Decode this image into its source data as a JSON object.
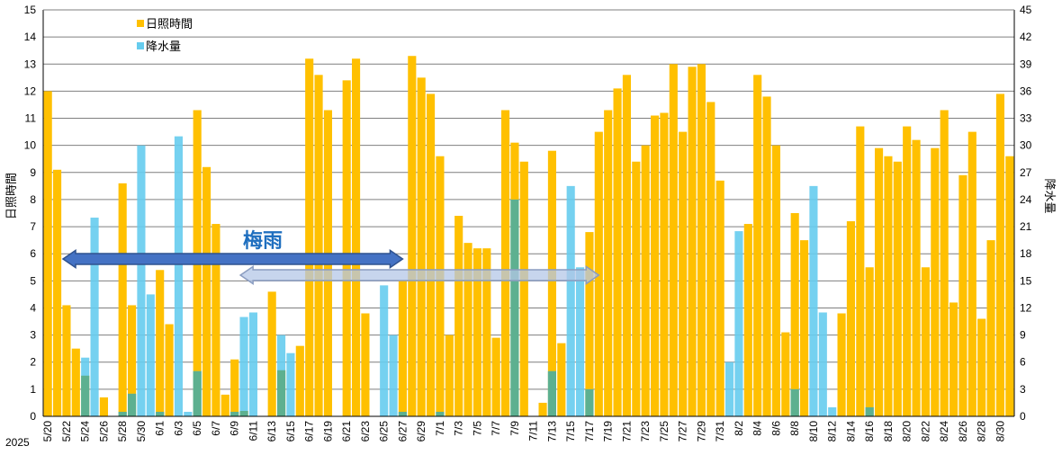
{
  "chart_data": {
    "type": "bar",
    "year_label": "2025",
    "categories": [
      "5/20",
      "5/21",
      "5/22",
      "5/23",
      "5/24",
      "5/25",
      "5/26",
      "5/27",
      "5/28",
      "5/29",
      "5/30",
      "5/31",
      "6/1",
      "6/2",
      "6/3",
      "6/4",
      "6/5",
      "6/6",
      "6/7",
      "6/8",
      "6/9",
      "6/10",
      "6/11",
      "6/12",
      "6/13",
      "6/14",
      "6/15",
      "6/16",
      "6/17",
      "6/18",
      "6/19",
      "6/20",
      "6/21",
      "6/22",
      "6/23",
      "6/24",
      "6/25",
      "6/26",
      "6/27",
      "6/28",
      "6/29",
      "6/30",
      "7/1",
      "7/2",
      "7/3",
      "7/4",
      "7/5",
      "7/6",
      "7/7",
      "7/8",
      "7/9",
      "7/10",
      "7/11",
      "7/12",
      "7/13",
      "7/14",
      "7/15",
      "7/16",
      "7/17",
      "7/18",
      "7/19",
      "7/20",
      "7/21",
      "7/22",
      "7/23",
      "7/24",
      "7/25",
      "7/26",
      "7/27",
      "7/28",
      "7/29",
      "7/30",
      "7/31",
      "8/1",
      "8/2",
      "8/3",
      "8/4",
      "8/5",
      "8/6",
      "8/7",
      "8/8",
      "8/9",
      "8/10",
      "8/11",
      "8/12",
      "8/13",
      "8/14",
      "8/15",
      "8/16",
      "8/17",
      "8/18",
      "8/19",
      "8/20",
      "8/21",
      "8/22",
      "8/23",
      "8/24",
      "8/25",
      "8/26",
      "8/27",
      "8/28",
      "8/29",
      "8/30",
      "8/31"
    ],
    "series": [
      {
        "name": "日照時間",
        "axis": "left",
        "color": "#ffc000",
        "values": [
          12.0,
          9.1,
          4.1,
          2.5,
          1.5,
          0.0,
          0.7,
          0.0,
          8.6,
          4.1,
          0.0,
          0.0,
          5.4,
          3.4,
          0.0,
          0.0,
          11.3,
          9.2,
          7.1,
          0.8,
          2.1,
          0.2,
          0.0,
          0.0,
          4.6,
          1.7,
          0.0,
          2.6,
          13.2,
          12.6,
          11.3,
          0.0,
          12.4,
          13.2,
          3.8,
          0.0,
          0.0,
          0.0,
          5.0,
          13.3,
          12.5,
          11.9,
          9.6,
          3.0,
          7.4,
          6.4,
          6.2,
          6.2,
          2.9,
          11.3,
          10.1,
          9.4,
          0.0,
          0.5,
          9.8,
          2.7,
          0.0,
          0.0,
          6.8,
          10.5,
          11.3,
          12.1,
          12.6,
          9.4,
          10.0,
          11.1,
          11.2,
          13.0,
          10.5,
          12.9,
          13.0,
          11.6,
          8.7,
          0.0,
          0.0,
          7.1,
          12.6,
          11.8,
          10.0,
          3.1,
          7.5,
          6.5,
          0.0,
          0.0,
          0.0,
          3.8,
          7.2,
          10.7,
          5.5,
          9.9,
          9.6,
          9.4,
          10.7,
          10.2,
          5.5,
          9.9,
          11.3,
          4.2,
          8.9,
          10.5,
          3.6,
          6.5,
          11.9,
          9.6
        ]
      },
      {
        "name": "降水量",
        "axis": "right",
        "color": "#66ccee",
        "values": [
          0,
          0,
          0,
          0,
          6.5,
          22.0,
          0,
          0,
          0.5,
          2.5,
          30.0,
          13.5,
          0.5,
          0,
          31.0,
          0.5,
          5.0,
          0,
          0,
          0,
          0.5,
          11.0,
          11.5,
          0,
          0,
          9.0,
          7.0,
          0,
          0,
          0,
          0,
          0,
          0,
          0,
          0,
          0,
          14.5,
          9.0,
          0.5,
          0,
          0,
          0,
          0.5,
          0,
          0,
          0,
          0,
          0,
          0,
          0,
          24.0,
          0,
          0,
          0,
          5.0,
          0,
          25.5,
          16.5,
          3.0,
          0,
          0,
          0,
          0,
          0,
          0,
          0,
          0,
          0,
          0,
          0,
          0,
          0,
          0,
          6.0,
          20.5,
          0,
          0,
          0,
          0,
          0,
          3.0,
          0,
          25.5,
          11.5,
          1.0,
          0,
          0,
          0,
          1.0,
          0,
          0,
          0,
          0,
          0,
          0,
          0,
          0,
          0,
          0,
          0,
          0,
          0,
          0,
          0
        ]
      }
    ],
    "ylim_left": [
      0,
      15
    ],
    "ylim_right": [
      0,
      45
    ],
    "yticks_left": [
      "0",
      "1",
      "2",
      "3",
      "4",
      "5",
      "6",
      "7",
      "8",
      "9",
      "10",
      "11",
      "12",
      "13",
      "14",
      "15"
    ],
    "yticks_right": [
      "0",
      "3",
      "6",
      "9",
      "12",
      "15",
      "18",
      "21",
      "24",
      "27",
      "30",
      "33",
      "36",
      "39",
      "42",
      "45"
    ],
    "ylabel_left": "日照時間",
    "ylabel_right": "降水量",
    "grid": true,
    "legend_position": "top-left",
    "annotations": {
      "rainy_season_label": "梅雨",
      "arrow_2025": {
        "start": "5/20",
        "end": "6/27",
        "color": "#4472c4"
      },
      "arrow_normal": {
        "start": "6/8",
        "end": "7/18",
        "color": "#b4c7e7"
      }
    }
  }
}
